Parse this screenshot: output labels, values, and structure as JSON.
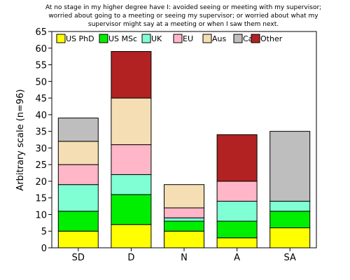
{
  "chart_data": {
    "type": "bar",
    "stacked": true,
    "title": [
      "At no stage in my higher degree have I: avoided seeing or meeting with my supervisor;",
      "worried about going to a meeting or seeing my supervisor; or worried about what my",
      "supervisor might say at a meeting or when I saw them next."
    ],
    "xlabel": "",
    "ylabel": "Arbitrary scale (n=96)",
    "ylim": [
      0,
      65
    ],
    "yticks": [
      0,
      5,
      10,
      15,
      20,
      25,
      30,
      35,
      40,
      45,
      50,
      55,
      60,
      65
    ],
    "grid": false,
    "legend_position": "top",
    "categories": [
      "SD",
      "D",
      "N",
      "A",
      "SA"
    ],
    "series": [
      {
        "name": "US PhD",
        "color": "#ffff00",
        "values": [
          5,
          7,
          5,
          3,
          6
        ]
      },
      {
        "name": "US MSc",
        "color": "#00ee00",
        "values": [
          6,
          9,
          3,
          5,
          5
        ]
      },
      {
        "name": "UK",
        "color": "#80ffd4",
        "values": [
          8,
          6,
          1,
          6,
          3
        ]
      },
      {
        "name": "EU",
        "color": "#ffb6c8",
        "values": [
          6,
          9,
          3,
          6,
          0
        ]
      },
      {
        "name": "Aus",
        "color": "#f5deb3",
        "values": [
          7,
          14,
          7,
          0,
          0
        ]
      },
      {
        "name": "Ca",
        "color": "#bebebe",
        "values": [
          7,
          0,
          0,
          0,
          21
        ]
      },
      {
        "name": "Other",
        "color": "#b22222",
        "values": [
          0,
          14,
          0,
          14,
          0
        ]
      }
    ]
  }
}
